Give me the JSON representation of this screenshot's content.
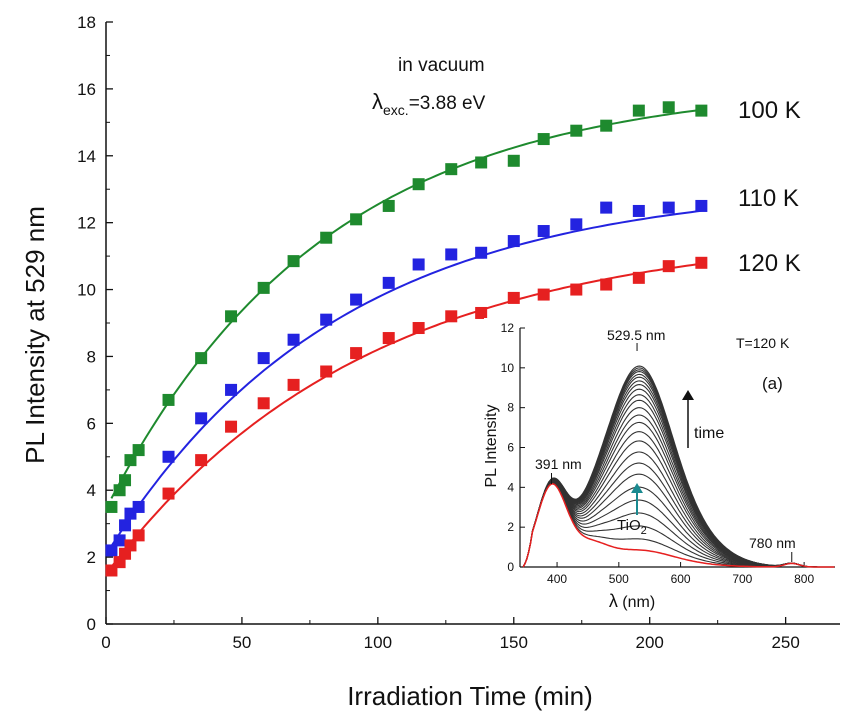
{
  "chart_data": [
    {
      "type": "scatter",
      "title": "",
      "xlabel": "Irradiation Time (min)",
      "ylabel": "PL Intensity at 529 nm",
      "xlim": [
        0,
        270
      ],
      "ylim": [
        0,
        18
      ],
      "xticks": [
        0,
        50,
        100,
        150,
        200,
        250
      ],
      "yticks": [
        0,
        2,
        4,
        6,
        8,
        10,
        12,
        14,
        16,
        18
      ],
      "grid": false,
      "legend": "none",
      "annotations": {
        "condition_line1": "in vacuum",
        "lambda_symbol": "λ",
        "lambda_sub": "exc.",
        "lambda_value": "=3.88 eV"
      },
      "series": [
        {
          "name": "100 K",
          "color": "#1e8a2e",
          "x": [
            2,
            5,
            7,
            9,
            12,
            23,
            35,
            46,
            58,
            69,
            81,
            92,
            104,
            115,
            127,
            138,
            150,
            161,
            173,
            184,
            196,
            207,
            219
          ],
          "y": [
            3.5,
            4.0,
            4.3,
            4.9,
            5.2,
            6.7,
            7.95,
            9.2,
            10.05,
            10.85,
            11.55,
            12.1,
            12.5,
            13.15,
            13.6,
            13.8,
            13.85,
            14.5,
            14.75,
            14.9,
            15.35,
            15.45,
            15.35
          ],
          "fit_a": 16.2,
          "fit_b": 12.6,
          "fit_tau": 80
        },
        {
          "name": "110 K",
          "color": "#2323e0",
          "x": [
            2,
            5,
            7,
            9,
            12,
            23,
            35,
            46,
            58,
            69,
            81,
            92,
            104,
            115,
            127,
            138,
            150,
            161,
            173,
            184,
            196,
            207,
            219
          ],
          "y": [
            2.2,
            2.5,
            2.95,
            3.3,
            3.5,
            5.0,
            6.15,
            7.0,
            7.95,
            8.5,
            9.1,
            9.7,
            10.2,
            10.75,
            11.05,
            11.1,
            11.45,
            11.75,
            11.95,
            12.45,
            12.35,
            12.45,
            12.5
          ],
          "fit_a": 13.2,
          "fit_b": 11.0,
          "fit_tau": 85
        },
        {
          "name": "120 K",
          "color": "#e62020",
          "x": [
            2,
            5,
            7,
            9,
            12,
            23,
            35,
            46,
            58,
            69,
            81,
            92,
            104,
            115,
            127,
            138,
            150,
            161,
            173,
            184,
            196,
            207,
            219
          ],
          "y": [
            1.6,
            1.85,
            2.1,
            2.35,
            2.65,
            3.9,
            4.9,
            5.9,
            6.6,
            7.15,
            7.55,
            8.1,
            8.55,
            8.85,
            9.2,
            9.3,
            9.75,
            9.85,
            10.0,
            10.15,
            10.35,
            10.7,
            10.8
          ],
          "fit_a": 11.8,
          "fit_b": 10.2,
          "fit_tau": 95
        }
      ]
    },
    {
      "type": "line",
      "panel_label": "(a)",
      "title": "",
      "xlabel_symbol": "λ",
      "xlabel_unit": " (nm)",
      "ylabel": "PL Intensity",
      "xlim": [
        340,
        850
      ],
      "ylim": [
        0,
        12
      ],
      "xticks": [
        400,
        500,
        600,
        700,
        800
      ],
      "yticks": [
        0,
        2,
        4,
        6,
        8,
        10,
        12
      ],
      "annotations": {
        "temperature": "T=120 K",
        "peak_main": "529.5 nm",
        "peak_uv": "391 nm",
        "peak_ir": "780 nm",
        "time_label": "time",
        "tio2_main": "TiO",
        "tio2_sub": "2"
      },
      "peak_heights": [
        1.5,
        2.2,
        2.9,
        3.6,
        4.3,
        5.0,
        5.6,
        6.2,
        6.8,
        7.3,
        7.8,
        8.2,
        8.6,
        9.0,
        9.3,
        9.6,
        9.85,
        10.05,
        10.25,
        10.4,
        10.55,
        10.65,
        10.75,
        10.85
      ],
      "baseline_color": "#e62020",
      "curve_color": "#333333"
    }
  ]
}
